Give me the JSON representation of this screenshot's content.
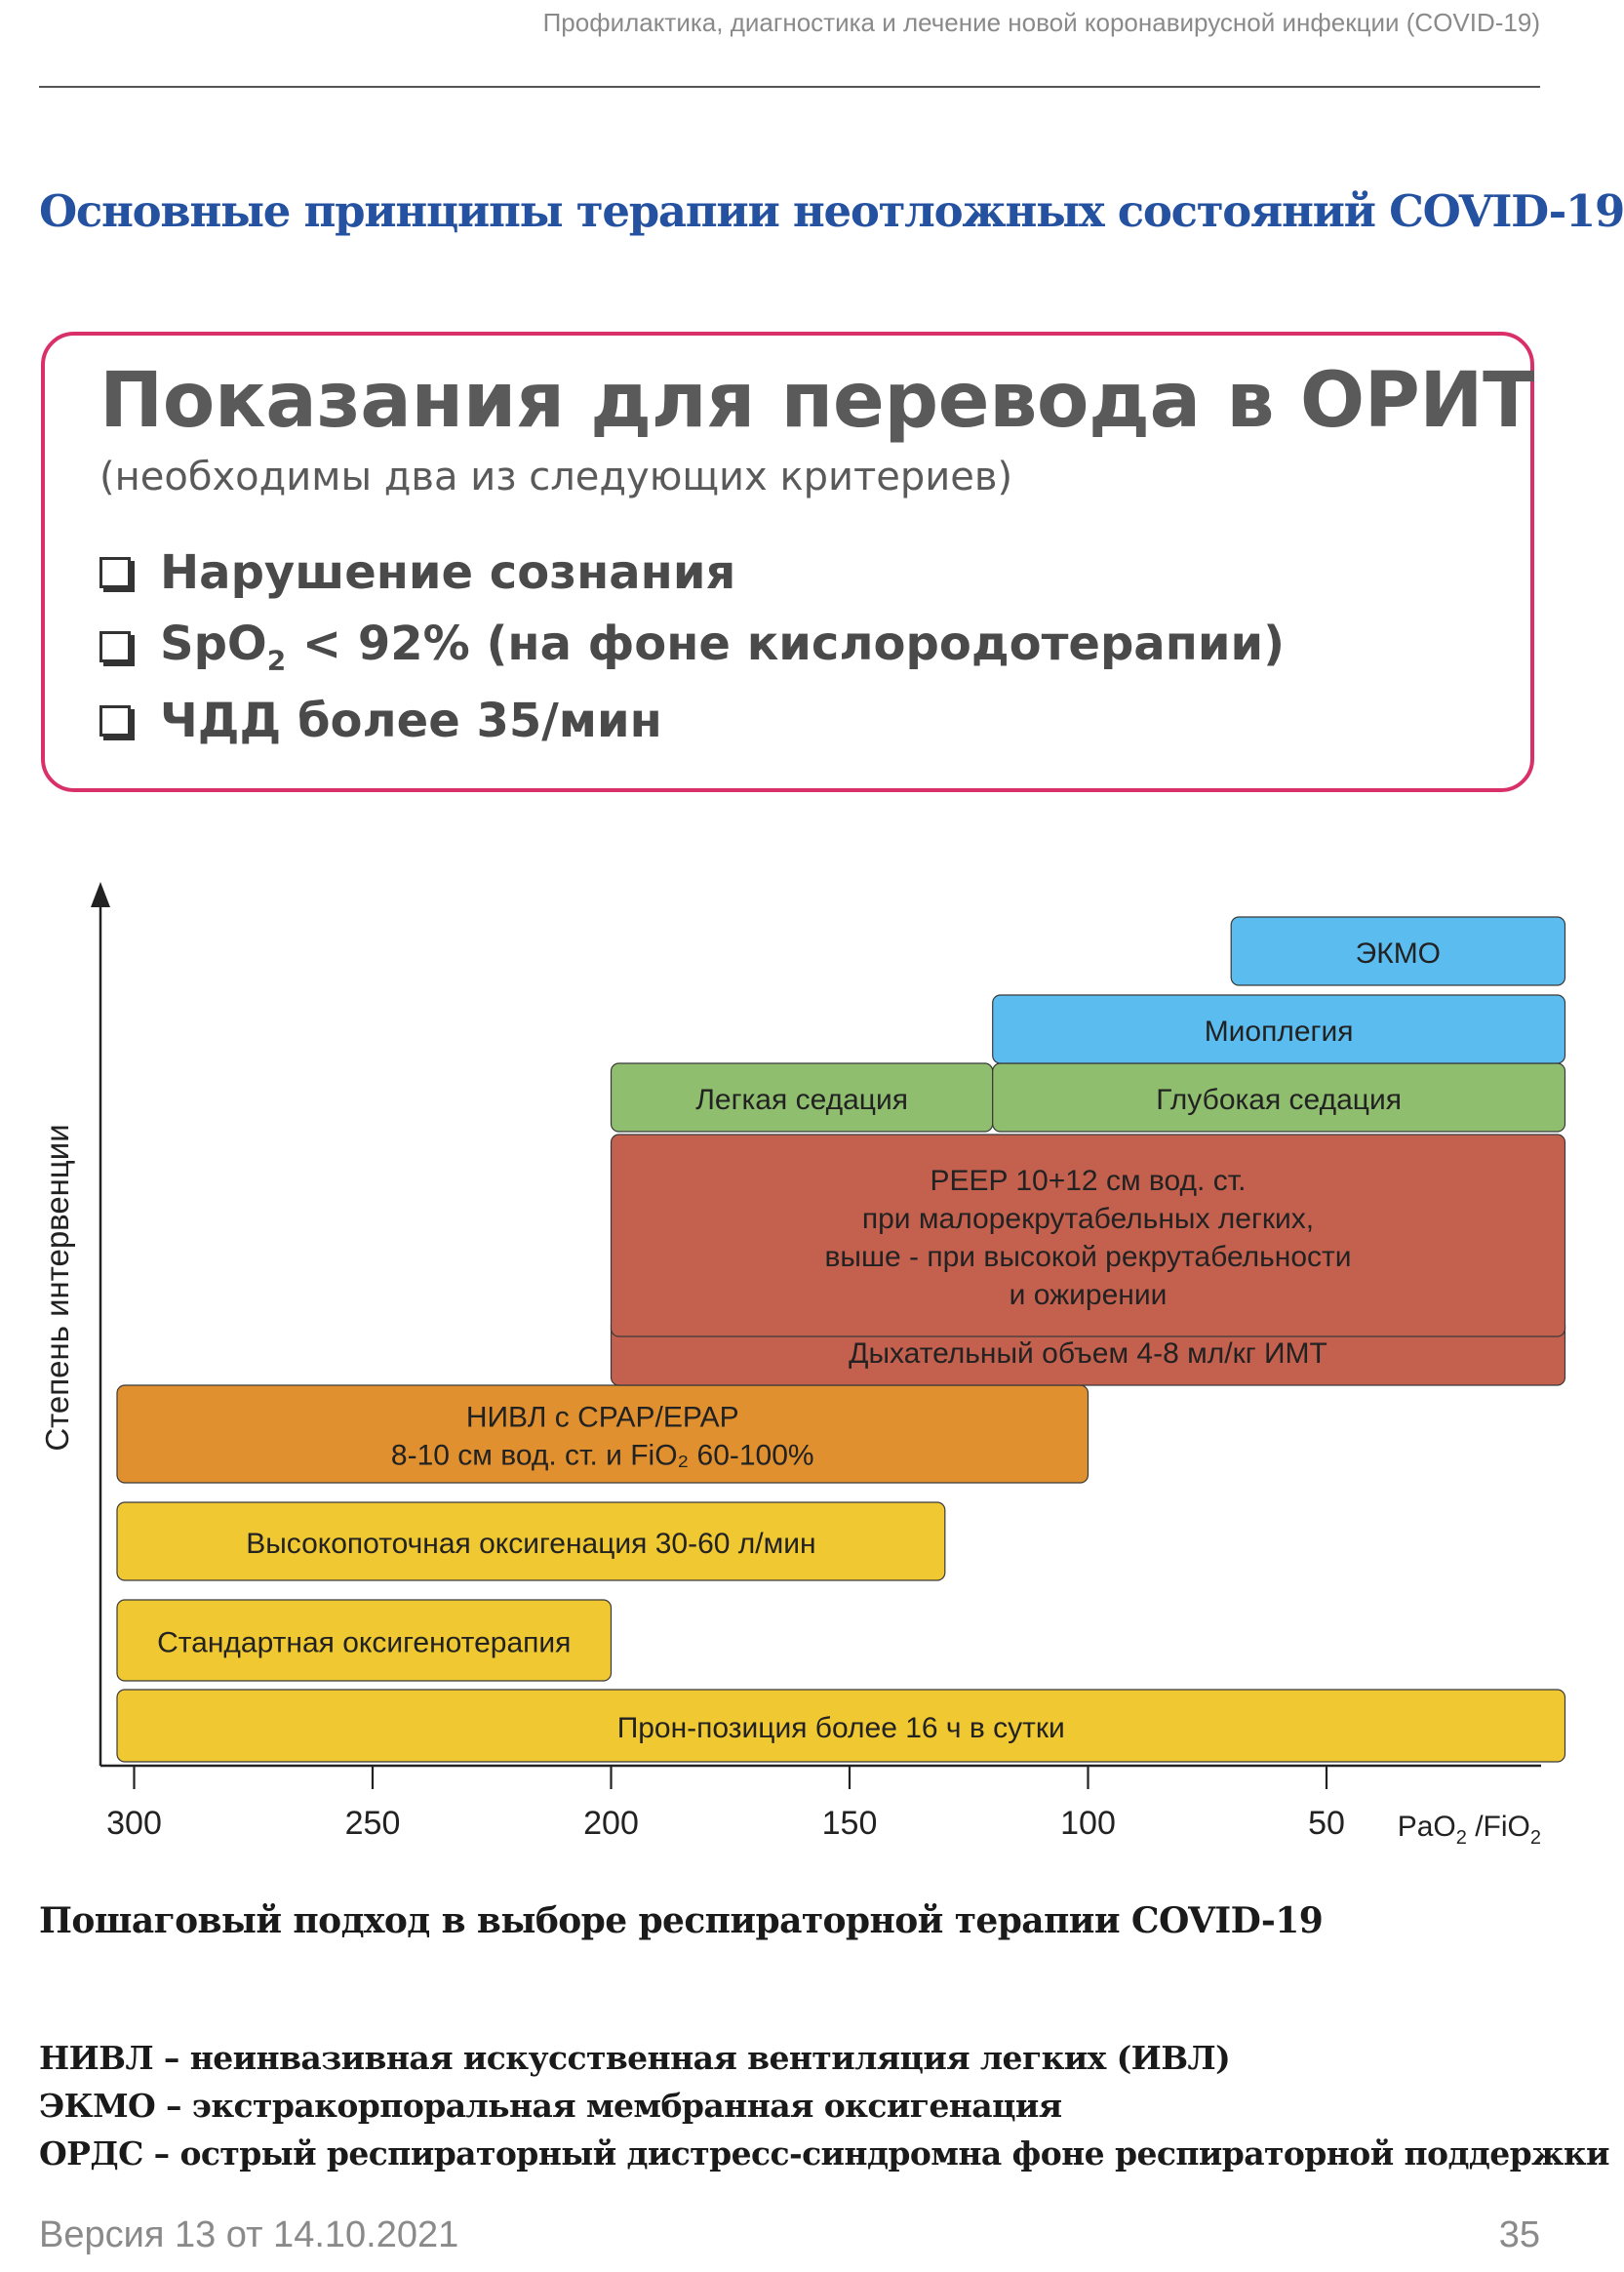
{
  "header": {
    "running_title": "Профилактика, диагностика и лечение новой коронавирусной инфекции (COVID-19)"
  },
  "section_title": "Основные принципы терапии неотложных состояний COVID-19",
  "icu_box": {
    "title": "Показания для перевода в ОРИТ",
    "subtitle": "(необходимы два из следующих критериев)",
    "criteria": [
      {
        "text": "Нарушение сознания"
      },
      {
        "prefix": "SpO",
        "sub": "2",
        "suffix": " < 92% (на фоне кислородотерапии)"
      },
      {
        "text": "ЧДД более 35/мин"
      }
    ],
    "border_color": "#d9306a"
  },
  "chart_data": {
    "type": "gantt",
    "ylabel": "Степень интервенции",
    "xlabel_parts": {
      "a": "PaO",
      "a_sub": "2",
      "b": " /FiO",
      "b_sub": "2"
    },
    "x_ticks": [
      300,
      250,
      200,
      150,
      100,
      50
    ],
    "x_reversed": true,
    "xlim": [
      305,
      0
    ],
    "bars": [
      {
        "label_lines": [
          "Прон-позиция более 16 ч в сутки"
        ],
        "from": 305,
        "to": 0,
        "level": 1,
        "color": "#f0c832"
      },
      {
        "label_lines": [
          "Стандартная оксигенотерапия"
        ],
        "from": 305,
        "to": 200,
        "level": 2,
        "color": "#f0c832"
      },
      {
        "label_lines": [
          "Высокопоточная оксигенация 30-60 л/мин"
        ],
        "from": 305,
        "to": 130,
        "level": 3,
        "color": "#f0c832"
      },
      {
        "label_lines": [
          "НИВЛ с CPAP/EPAP",
          "8-10 см вод. ст. и FiO₂ 60-100%"
        ],
        "from": 305,
        "to": 100,
        "level": 4,
        "color": "#e0902e"
      },
      {
        "label_lines": [
          "Дыхательный объем 4-8 мл/кг ИМТ"
        ],
        "from": 200,
        "to": 0,
        "level": 5,
        "color": "#c4604e"
      },
      {
        "label_lines": [
          "PEEP 10+12 см вод. ст.",
          "при малорекрутабельных легких,",
          "выше - при высокой рекрутабельности",
          "и ожирении"
        ],
        "from": 200,
        "to": 0,
        "level": 6,
        "color": "#c4604e"
      },
      {
        "label_lines": [
          "Легкая седация"
        ],
        "from": 200,
        "to": 120,
        "level": 7,
        "color": "#8fbe6e"
      },
      {
        "label_lines": [
          "Глубокая седация"
        ],
        "from": 120,
        "to": 0,
        "level": 7,
        "color": "#8fbe6e"
      },
      {
        "label_lines": [
          "Миоплегия"
        ],
        "from": 120,
        "to": 0,
        "level": 8,
        "color": "#5bbcf0"
      },
      {
        "label_lines": [
          "ЭКМО"
        ],
        "from": 70,
        "to": 0,
        "level": 9,
        "color": "#5bbcf0"
      }
    ]
  },
  "caption": "Пошаговый подход в выборе респираторной терапии COVID-19",
  "abbreviations": [
    "НИВЛ – неинвазивная искусственная вентиляция легких (ИВЛ)",
    "ЭКМО – экстракорпоральная мембранная оксигенация",
    "ОРДС – острый респираторный дистресс-синдромна фоне респираторной поддержки"
  ],
  "footer": {
    "version": "Версия 13 от 14.10.2021",
    "page_number": "35"
  }
}
